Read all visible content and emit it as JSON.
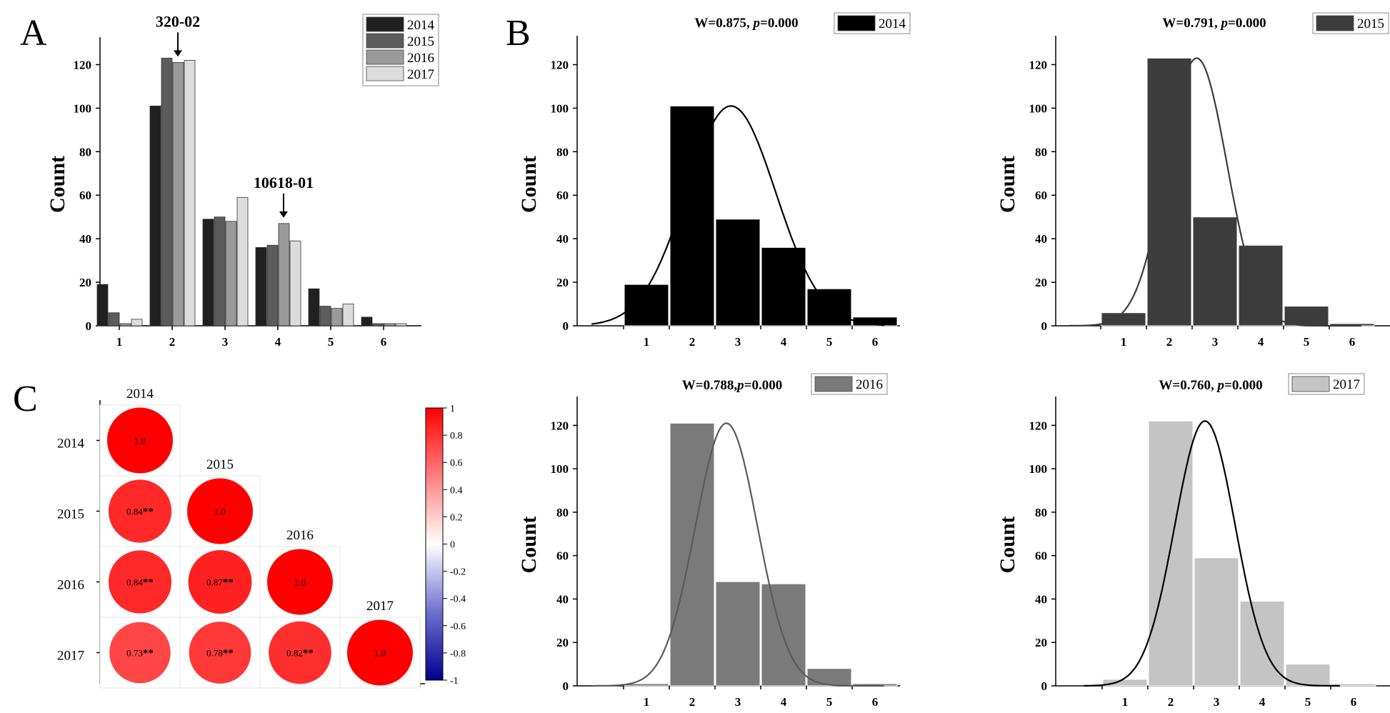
{
  "panels": {
    "A": "A",
    "B": "B",
    "C": "C"
  },
  "chart_data": [
    {
      "id": "A",
      "type": "bar",
      "title": "",
      "xlabel": "",
      "ylabel": "Count",
      "ylim": [
        0,
        130
      ],
      "yticks": [
        0,
        20,
        40,
        60,
        80,
        100,
        120
      ],
      "categories": [
        "1",
        "2",
        "3",
        "4",
        "5",
        "6"
      ],
      "series": [
        {
          "name": "2014",
          "color": "#202020",
          "values": [
            19,
            101,
            49,
            36,
            17,
            4
          ]
        },
        {
          "name": "2015",
          "color": "#5c5c5c",
          "values": [
            6,
            123,
            50,
            37,
            9,
            1
          ]
        },
        {
          "name": "2016",
          "color": "#9a9a9a",
          "values": [
            1,
            121,
            48,
            47,
            8,
            1
          ]
        },
        {
          "name": "2017",
          "color": "#dcdcdc",
          "values": [
            3,
            122,
            59,
            39,
            10,
            1
          ]
        }
      ],
      "annotations": [
        {
          "text": "320-02",
          "category": "2",
          "series": "2016"
        },
        {
          "text": "10618-01",
          "category": "4",
          "series": "2016"
        }
      ],
      "legend_position": "top-right"
    },
    {
      "id": "B-2014",
      "type": "bar",
      "title": "W=0.875, p=0.000",
      "stat": {
        "w": "W=0.875, ",
        "p": "p",
        "rest": "=0.000"
      },
      "ylabel": "Count",
      "legend": "2014",
      "color": "#000000",
      "curve_color": "#000000",
      "ylim": [
        0,
        130
      ],
      "yticks": [
        0,
        20,
        40,
        60,
        80,
        100,
        120
      ],
      "categories": [
        "1",
        "2",
        "3",
        "4",
        "5",
        "6"
      ],
      "values": [
        19,
        101,
        49,
        36,
        17,
        4
      ],
      "normal_fit": {
        "mean": 2.85,
        "sd": 0.98,
        "peak": 101
      }
    },
    {
      "id": "B-2015",
      "type": "bar",
      "title": "W=0.791, p=0.000",
      "stat": {
        "w": "W=0.791, ",
        "p": "p",
        "rest": "=0.000"
      },
      "ylabel": "Count",
      "legend": "2015",
      "color": "#3c3c3c",
      "curve_color": "#3c3c3c",
      "ylim": [
        0,
        130
      ],
      "yticks": [
        0,
        20,
        40,
        60,
        80,
        100,
        120
      ],
      "categories": [
        "1",
        "2",
        "3",
        "4",
        "5",
        "6"
      ],
      "values": [
        6,
        123,
        50,
        37,
        9,
        1
      ],
      "normal_fit": {
        "mean": 2.6,
        "sd": 0.66,
        "peak": 123
      }
    },
    {
      "id": "B-2016",
      "type": "bar",
      "title": "W=0.788, p=0.000",
      "stat": {
        "w": "W=0.788,",
        "p": "p",
        "rest": "=0.000"
      },
      "ylabel": "Count",
      "legend": "2016",
      "color": "#7a7a7a",
      "curve_color": "#5a5a5a",
      "ylim": [
        0,
        130
      ],
      "yticks": [
        0,
        20,
        40,
        60,
        80,
        100,
        120
      ],
      "categories": [
        "1",
        "2",
        "3",
        "4",
        "5",
        "6"
      ],
      "values": [
        1,
        121,
        48,
        47,
        8,
        1
      ],
      "normal_fit": {
        "mean": 2.75,
        "sd": 0.68,
        "peak": 121
      }
    },
    {
      "id": "B-2017",
      "type": "bar",
      "title": "W=0.760, p=0.000",
      "stat": {
        "w": "W=0.760, ",
        "p": "p",
        "rest": "=0.000"
      },
      "ylabel": "Count",
      "legend": "2017",
      "color": "#c4c4c4",
      "curve_color": "#000000",
      "ylim": [
        0,
        130
      ],
      "yticks": [
        0,
        20,
        40,
        60,
        80,
        100,
        120
      ],
      "categories": [
        "1",
        "2",
        "3",
        "4",
        "5",
        "6"
      ],
      "values": [
        3,
        122,
        59,
        39,
        10,
        1
      ],
      "normal_fit": {
        "mean": 2.75,
        "sd": 0.66,
        "peak": 122
      }
    },
    {
      "id": "C",
      "type": "heatmap",
      "title": "",
      "labels": [
        "2014",
        "2015",
        "2016",
        "2017"
      ],
      "matrix": [
        [
          1.0,
          null,
          null,
          null
        ],
        [
          0.84,
          1.0,
          null,
          null
        ],
        [
          0.84,
          0.87,
          1.0,
          null
        ],
        [
          0.73,
          0.78,
          0.82,
          1.0
        ]
      ],
      "cell_text": [
        [
          "1.0",
          "",
          "",
          ""
        ],
        [
          "0.84",
          "1.0",
          "",
          ""
        ],
        [
          "0.84",
          "0.87",
          "1.0",
          ""
        ],
        [
          "0.73",
          "0.78",
          "0.82",
          "1.0"
        ]
      ],
      "significance": "**",
      "colorbar": {
        "range": [
          -1,
          1
        ],
        "ticks": [
          "1",
          "0.8",
          "0.6",
          "0.4",
          "0.2",
          "0",
          "-0.2",
          "-0.4",
          "-0.6",
          "-0.8",
          "-1"
        ],
        "colors": {
          "low": "#00008b",
          "mid": "#ffffff",
          "high": "#ff0000"
        }
      }
    }
  ]
}
